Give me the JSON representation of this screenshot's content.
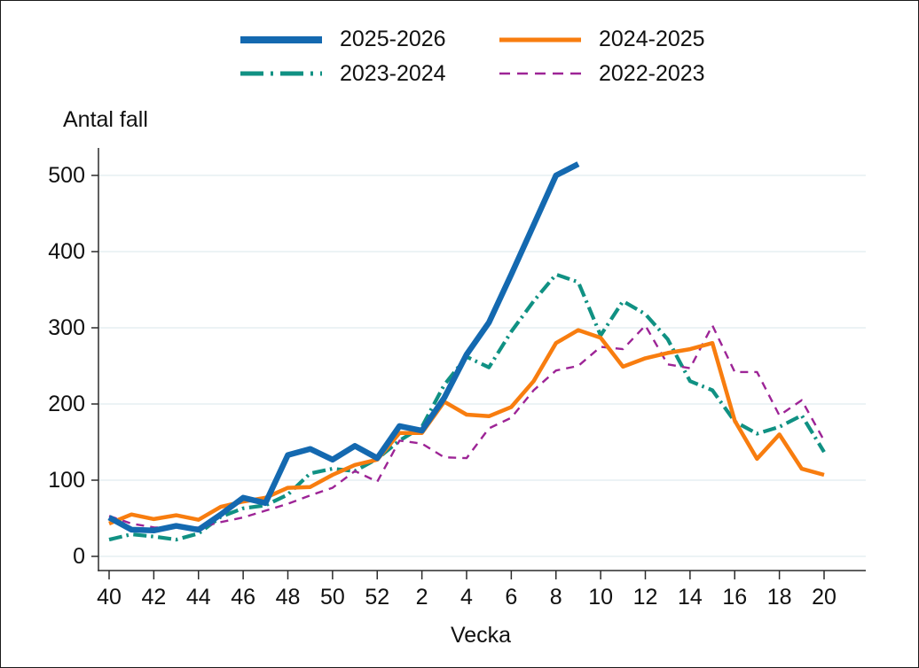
{
  "chart_data": {
    "type": "line",
    "title": "",
    "ylabel": "Antal fall",
    "xlabel": "Vecka",
    "ylim": [
      0,
      520
    ],
    "grid": true,
    "legend_position": "top-center",
    "y_ticks": [
      0,
      100,
      200,
      300,
      400,
      500
    ],
    "x_categories": [
      "40",
      "41",
      "42",
      "43",
      "44",
      "45",
      "46",
      "47",
      "48",
      "49",
      "50",
      "51",
      "52",
      "1",
      "2",
      "3",
      "4",
      "5",
      "6",
      "7",
      "8",
      "9",
      "10",
      "11",
      "12",
      "13",
      "14",
      "15",
      "16",
      "17",
      "18",
      "19",
      "20"
    ],
    "x_ticklabels": [
      "40",
      "42",
      "44",
      "46",
      "48",
      "50",
      "52",
      "2",
      "4",
      "6",
      "8",
      "10",
      "12",
      "14",
      "16",
      "18",
      "20"
    ],
    "series": [
      {
        "name": "2025-2026",
        "color": "#1469b0",
        "line_style": "solid-thick",
        "values": [
          51,
          35,
          34,
          40,
          35,
          55,
          77,
          70,
          133,
          141,
          127,
          145,
          129,
          171,
          165,
          208,
          265,
          307,
          370,
          435,
          500,
          515
        ]
      },
      {
        "name": "2024-2025",
        "color": "#f87d0f",
        "line_style": "solid",
        "values": [
          43,
          55,
          49,
          54,
          48,
          65,
          72,
          77,
          90,
          91,
          107,
          120,
          127,
          162,
          162,
          203,
          186,
          184,
          196,
          230,
          280,
          297,
          287,
          249,
          260,
          267,
          272,
          280,
          178,
          128,
          160,
          115,
          107
        ]
      },
      {
        "name": "2023-2024",
        "color": "#109183",
        "line_style": "dashdot",
        "values": [
          22,
          29,
          26,
          22,
          30,
          52,
          63,
          67,
          81,
          109,
          115,
          112,
          128,
          152,
          170,
          225,
          262,
          248,
          295,
          335,
          370,
          360,
          290,
          335,
          318,
          285,
          230,
          218,
          177,
          161,
          170,
          185,
          137
        ]
      },
      {
        "name": "2022-2023",
        "color": "#9d2496",
        "line_style": "dashed",
        "values": [
          53,
          43,
          38,
          37,
          38,
          45,
          51,
          60,
          69,
          80,
          90,
          112,
          98,
          152,
          148,
          130,
          129,
          168,
          182,
          218,
          244,
          250,
          275,
          272,
          303,
          252,
          247,
          303,
          242,
          242,
          185,
          205,
          152
        ]
      }
    ],
    "colors": {
      "grid_line": "#e6eff2",
      "axis_line": "#2b2b2b",
      "text": "#111111"
    }
  }
}
